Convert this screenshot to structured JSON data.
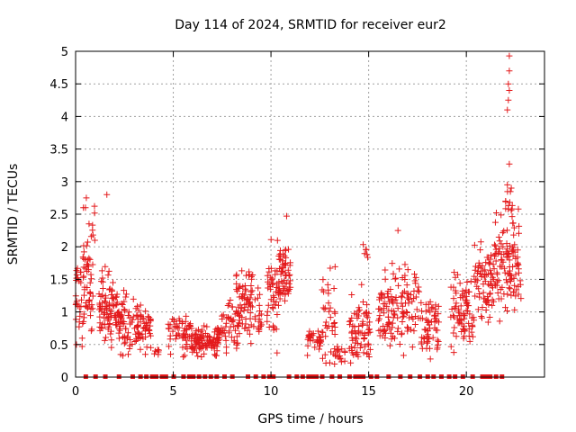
{
  "chart_data": {
    "type": "scatter",
    "title": "Day 114 of 2024, SRMTID for receiver eur2",
    "xlabel": "GPS time / hours",
    "ylabel": "SRMTID / TECUs",
    "xlim": [
      0,
      24
    ],
    "ylim": [
      0,
      5
    ],
    "x_ticks": [
      0,
      5,
      10,
      15,
      20
    ],
    "y_ticks": [
      0,
      0.5,
      1,
      1.5,
      2,
      2.5,
      3,
      3.5,
      4,
      4.5,
      5
    ],
    "grid": true,
    "marker": "+",
    "color": "#e41a1c",
    "clusters": [
      {
        "start": 0.0,
        "end": 0.9,
        "mean": 1.35,
        "spread": 0.55,
        "count": 70
      },
      {
        "start": 0.5,
        "end": 1.0,
        "mean": 2.15,
        "spread": 0.35,
        "count": 14
      },
      {
        "start": 1.2,
        "end": 2.2,
        "mean": 1.05,
        "spread": 0.45,
        "count": 90
      },
      {
        "start": 2.2,
        "end": 3.0,
        "mean": 0.8,
        "spread": 0.35,
        "count": 55
      },
      {
        "start": 3.0,
        "end": 3.9,
        "mean": 0.75,
        "spread": 0.3,
        "count": 60
      },
      {
        "start": 4.0,
        "end": 4.3,
        "mean": 0.4,
        "spread": 0.08,
        "count": 6
      },
      {
        "start": 4.7,
        "end": 5.9,
        "mean": 0.65,
        "spread": 0.25,
        "count": 55
      },
      {
        "start": 5.9,
        "end": 7.4,
        "mean": 0.55,
        "spread": 0.15,
        "count": 110
      },
      {
        "start": 7.4,
        "end": 8.4,
        "mean": 0.75,
        "spread": 0.3,
        "count": 50
      },
      {
        "start": 8.2,
        "end": 9.1,
        "mean": 1.2,
        "spread": 0.45,
        "count": 70
      },
      {
        "start": 9.1,
        "end": 9.6,
        "mean": 0.9,
        "spread": 0.3,
        "count": 20
      },
      {
        "start": 9.8,
        "end": 10.4,
        "mean": 1.3,
        "spread": 0.55,
        "count": 45
      },
      {
        "start": 10.4,
        "end": 11.0,
        "mean": 1.6,
        "spread": 0.35,
        "count": 60
      },
      {
        "start": 11.8,
        "end": 12.6,
        "mean": 0.55,
        "spread": 0.15,
        "count": 35
      },
      {
        "start": 12.6,
        "end": 13.3,
        "mean": 0.9,
        "spread": 0.5,
        "count": 40
      },
      {
        "start": 13.3,
        "end": 13.8,
        "mean": 0.35,
        "spread": 0.15,
        "count": 15
      },
      {
        "start": 14.0,
        "end": 15.1,
        "mean": 0.7,
        "spread": 0.45,
        "count": 75
      },
      {
        "start": 14.6,
        "end": 15.0,
        "mean": 1.95,
        "spread": 0.1,
        "count": 6
      },
      {
        "start": 15.5,
        "end": 17.6,
        "mean": 1.1,
        "spread": 0.45,
        "count": 130
      },
      {
        "start": 17.6,
        "end": 18.6,
        "mean": 0.8,
        "spread": 0.35,
        "count": 60
      },
      {
        "start": 19.2,
        "end": 20.4,
        "mean": 1.0,
        "spread": 0.45,
        "count": 80
      },
      {
        "start": 20.4,
        "end": 21.4,
        "mean": 1.4,
        "spread": 0.4,
        "count": 70
      },
      {
        "start": 21.4,
        "end": 22.8,
        "mean": 1.7,
        "spread": 0.55,
        "count": 110
      },
      {
        "start": 22.0,
        "end": 22.4,
        "mean": 2.6,
        "spread": 0.25,
        "count": 14
      }
    ],
    "outliers": [
      {
        "x": 1.6,
        "y": 2.8
      },
      {
        "x": 0.55,
        "y": 2.75
      },
      {
        "x": 0.4,
        "y": 2.6
      },
      {
        "x": 10.8,
        "y": 2.47
      },
      {
        "x": 16.5,
        "y": 2.25
      },
      {
        "x": 22.2,
        "y": 3.27
      },
      {
        "x": 22.1,
        "y": 4.1
      },
      {
        "x": 22.15,
        "y": 4.25
      },
      {
        "x": 22.2,
        "y": 4.4
      },
      {
        "x": 22.15,
        "y": 4.5
      },
      {
        "x": 22.2,
        "y": 4.7
      },
      {
        "x": 22.2,
        "y": 4.93
      },
      {
        "x": 22.1,
        "y": 2.95
      },
      {
        "x": 22.3,
        "y": 2.9
      }
    ],
    "zero_markers": [
      0.5,
      1.0,
      1.5,
      2.2,
      2.9,
      3.3,
      3.6,
      3.9,
      4.1,
      4.4,
      4.6,
      5.0,
      5.5,
      5.8,
      6.0,
      6.3,
      6.6,
      6.9,
      7.2,
      7.6,
      8.0,
      8.8,
      9.2,
      9.6,
      9.9,
      10.1,
      10.9,
      11.3,
      11.6,
      11.9,
      12.1,
      12.3,
      12.6,
      13.1,
      13.5,
      14.0,
      14.3,
      14.5,
      14.7,
      15.1,
      15.4,
      16.0,
      16.6,
      17.1,
      17.6,
      18.0,
      18.3,
      18.7,
      19.1,
      19.4,
      19.8,
      20.3,
      20.8,
      21.0,
      21.2,
      21.5,
      21.8
    ]
  }
}
